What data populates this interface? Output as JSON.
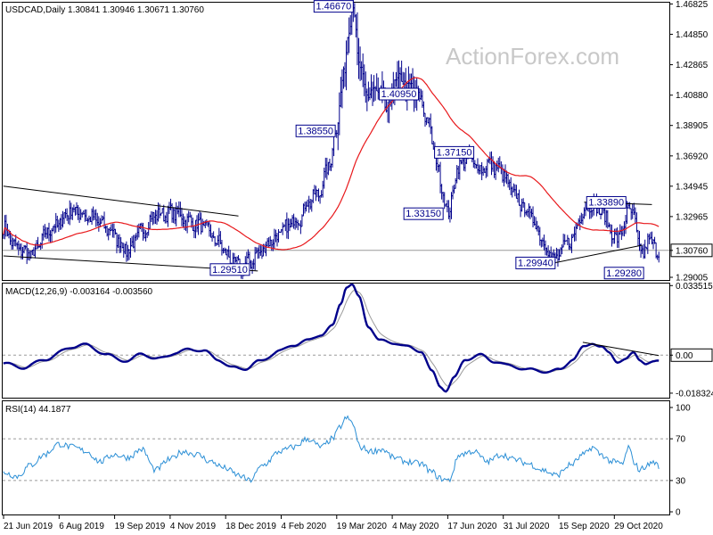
{
  "watermark": "ActionForex.com",
  "colors": {
    "candle": "#00008b",
    "ma": "#e8181b",
    "macd": "#00008b",
    "signal": "#999999",
    "rsi": "#2b8fd6",
    "trendline": "#000000",
    "refline": "#9a9a9a"
  },
  "x_axis": {
    "labels": [
      "21 Jun 2019",
      "6 Aug 2019",
      "19 Sep 2019",
      "4 Nov 2019",
      "18 Dec 2019",
      "4 Feb 2020",
      "19 Mar 2020",
      "4 May 2020",
      "17 Jun 2020",
      "31 Jul 2020",
      "15 Sep 2020",
      "29 Oct 2020"
    ]
  },
  "chart_data": [
    {
      "type": "candlestick",
      "title": "USDCAD,Daily  1.30841 1.30946 1.30671 1.30760",
      "ylim": [
        1.2883,
        1.4691
      ],
      "yticks": [
        "1.46825",
        "1.44850",
        "1.42865",
        "1.40880",
        "1.38905",
        "1.36920",
        "1.34945",
        "1.32965",
        "1.30760",
        "1.29005"
      ],
      "yticks_v": [
        1.46825,
        1.4485,
        1.42865,
        1.4088,
        1.38905,
        1.3692,
        1.34945,
        1.32965,
        1.3076,
        1.29005
      ],
      "last_price": "1.30760",
      "series": [
        {
          "name": "Moving average",
          "type": "line"
        }
      ],
      "close_anchors": [
        [
          0,
          1.322
        ],
        [
          10,
          1.309
        ],
        [
          20,
          1.305
        ],
        [
          35,
          1.322
        ],
        [
          50,
          1.334
        ],
        [
          65,
          1.328
        ],
        [
          75,
          1.322
        ],
        [
          90,
          1.308
        ],
        [
          100,
          1.32
        ],
        [
          110,
          1.331
        ],
        [
          125,
          1.332
        ],
        [
          135,
          1.326
        ],
        [
          145,
          1.323
        ],
        [
          155,
          1.313
        ],
        [
          165,
          1.301
        ],
        [
          172,
          1.296
        ],
        [
          178,
          1.3
        ],
        [
          185,
          1.306
        ],
        [
          195,
          1.315
        ],
        [
          205,
          1.322
        ],
        [
          210,
          1.327
        ],
        [
          215,
          1.329
        ],
        [
          220,
          1.339
        ],
        [
          228,
          1.345
        ],
        [
          236,
          1.364
        ],
        [
          240,
          1.385
        ],
        [
          246,
          1.42
        ],
        [
          250,
          1.455
        ],
        [
          253,
          1.467
        ],
        [
          257,
          1.43
        ],
        [
          262,
          1.41
        ],
        [
          270,
          1.412
        ],
        [
          278,
          1.4
        ],
        [
          285,
          1.42
        ],
        [
          292,
          1.415
        ],
        [
          300,
          1.408
        ],
        [
          306,
          1.395
        ],
        [
          312,
          1.371
        ],
        [
          318,
          1.345
        ],
        [
          322,
          1.331
        ],
        [
          328,
          1.36
        ],
        [
          335,
          1.368
        ],
        [
          345,
          1.361
        ],
        [
          352,
          1.364
        ],
        [
          360,
          1.359
        ],
        [
          368,
          1.346
        ],
        [
          375,
          1.337
        ],
        [
          382,
          1.33
        ],
        [
          388,
          1.318
        ],
        [
          395,
          1.306
        ],
        [
          400,
          1.301
        ],
        [
          405,
          1.31
        ],
        [
          412,
          1.316
        ],
        [
          418,
          1.332
        ],
        [
          425,
          1.338
        ],
        [
          430,
          1.335
        ],
        [
          436,
          1.328
        ],
        [
          442,
          1.315
        ],
        [
          448,
          1.32
        ],
        [
          452,
          1.336
        ],
        [
          456,
          1.328
        ],
        [
          460,
          1.311
        ],
        [
          463,
          1.303
        ],
        [
          466,
          1.316
        ],
        [
          470,
          1.31
        ],
        [
          474,
          1.307
        ]
      ],
      "annotations": [
        {
          "text": "1.46670",
          "bar": 253,
          "price": 1.4667,
          "pos": "left"
        },
        {
          "text": "1.38550",
          "bar": 240,
          "price": 1.3855,
          "pos": "left"
        },
        {
          "text": "1.40950",
          "bar": 286,
          "price": 1.4095,
          "pos": "center"
        },
        {
          "text": "1.37150",
          "bar": 326,
          "price": 1.3715,
          "pos": "center"
        },
        {
          "text": "1.33150",
          "bar": 318,
          "price": 1.3315,
          "pos": "left"
        },
        {
          "text": "1.29510",
          "bar": 178,
          "price": 1.2951,
          "pos": "left"
        },
        {
          "text": "1.29940",
          "bar": 399,
          "price": 1.2994,
          "pos": "left"
        },
        {
          "text": "1.33890",
          "bar": 436,
          "price": 1.3389,
          "pos": "center"
        },
        {
          "text": "1.29280",
          "bar": 463,
          "price": 1.2928,
          "pos": "left"
        }
      ],
      "trendlines": [
        [
          [
            0,
            1.3495
          ],
          [
            170,
            1.33
          ]
        ],
        [
          [
            0,
            1.304
          ],
          [
            184,
            1.2942
          ]
        ],
        [
          [
            398,
            1.2994
          ],
          [
            462,
            1.311
          ]
        ],
        [
          [
            420,
            1.339
          ],
          [
            469,
            1.3375
          ]
        ]
      ],
      "refline": 1.3076
    },
    {
      "type": "line",
      "title": "MACD(12,26,9) -0.003164 -0.003560",
      "ylim": [
        -0.0205,
        0.0345
      ],
      "yticks": [
        "0.033515",
        "0.00",
        "-0.018324"
      ],
      "yticks_v": [
        0.033515,
        0.0,
        -0.018324
      ],
      "last_value": "0.00",
      "series": [
        {
          "name": "MACD"
        },
        {
          "name": "Signal"
        }
      ],
      "macd_anchors": [
        [
          0,
          -0.004
        ],
        [
          15,
          -0.006
        ],
        [
          30,
          -0.002
        ],
        [
          50,
          0.004
        ],
        [
          60,
          0.005
        ],
        [
          75,
          0.0
        ],
        [
          90,
          -0.003
        ],
        [
          100,
          0.001
        ],
        [
          110,
          -0.002
        ],
        [
          125,
          0.001
        ],
        [
          135,
          0.003
        ],
        [
          145,
          0.002
        ],
        [
          155,
          -0.002
        ],
        [
          165,
          -0.006
        ],
        [
          175,
          -0.0065
        ],
        [
          185,
          -0.003
        ],
        [
          200,
          0.002
        ],
        [
          210,
          0.005
        ],
        [
          220,
          0.007
        ],
        [
          230,
          0.01
        ],
        [
          238,
          0.014
        ],
        [
          244,
          0.025
        ],
        [
          248,
          0.033
        ],
        [
          252,
          0.034
        ],
        [
          257,
          0.028
        ],
        [
          264,
          0.014
        ],
        [
          272,
          0.007
        ],
        [
          282,
          0.006
        ],
        [
          292,
          0.004
        ],
        [
          302,
          0.002
        ],
        [
          310,
          -0.008
        ],
        [
          316,
          -0.015
        ],
        [
          320,
          -0.017
        ],
        [
          326,
          -0.011
        ],
        [
          334,
          -0.002
        ],
        [
          345,
          0.0
        ],
        [
          355,
          -0.003
        ],
        [
          365,
          -0.005
        ],
        [
          380,
          -0.007
        ],
        [
          395,
          -0.008
        ],
        [
          402,
          -0.007
        ],
        [
          412,
          -0.002
        ],
        [
          420,
          0.004
        ],
        [
          426,
          0.006
        ],
        [
          432,
          0.004
        ],
        [
          438,
          0.001
        ],
        [
          444,
          -0.003
        ],
        [
          450,
          -0.002
        ],
        [
          456,
          0.001
        ],
        [
          460,
          -0.002
        ],
        [
          465,
          -0.004
        ],
        [
          470,
          -0.0035
        ],
        [
          474,
          -0.003
        ]
      ],
      "trendline": [
        [
          419,
          0.0062
        ],
        [
          474,
          -0.0002
        ]
      ]
    },
    {
      "type": "line",
      "title": "RSI(14) 44.1877",
      "ylim": [
        0,
        100
      ],
      "yticks": [
        "100",
        "70",
        "30",
        "0"
      ],
      "yticks_v": [
        100,
        70,
        30,
        0
      ],
      "guide_levels": [
        70,
        30
      ],
      "series": [
        {
          "name": "RSI"
        }
      ],
      "rsi_anchors": [
        [
          0,
          38
        ],
        [
          10,
          34
        ],
        [
          20,
          45
        ],
        [
          30,
          55
        ],
        [
          40,
          65
        ],
        [
          50,
          62
        ],
        [
          60,
          58
        ],
        [
          70,
          48
        ],
        [
          80,
          55
        ],
        [
          90,
          52
        ],
        [
          100,
          60
        ],
        [
          110,
          40
        ],
        [
          120,
          50
        ],
        [
          130,
          58
        ],
        [
          140,
          55
        ],
        [
          150,
          48
        ],
        [
          160,
          42
        ],
        [
          170,
          35
        ],
        [
          178,
          30
        ],
        [
          188,
          45
        ],
        [
          200,
          58
        ],
        [
          210,
          62
        ],
        [
          220,
          70
        ],
        [
          230,
          62
        ],
        [
          238,
          70
        ],
        [
          244,
          82
        ],
        [
          248,
          90
        ],
        [
          252,
          86
        ],
        [
          258,
          62
        ],
        [
          266,
          58
        ],
        [
          274,
          60
        ],
        [
          282,
          52
        ],
        [
          292,
          48
        ],
        [
          302,
          46
        ],
        [
          310,
          38
        ],
        [
          316,
          32
        ],
        [
          322,
          30
        ],
        [
          330,
          55
        ],
        [
          340,
          58
        ],
        [
          350,
          48
        ],
        [
          360,
          55
        ],
        [
          370,
          50
        ],
        [
          380,
          46
        ],
        [
          390,
          40
        ],
        [
          400,
          35
        ],
        [
          410,
          45
        ],
        [
          420,
          55
        ],
        [
          426,
          62
        ],
        [
          432,
          55
        ],
        [
          440,
          48
        ],
        [
          448,
          46
        ],
        [
          452,
          62
        ],
        [
          456,
          48
        ],
        [
          460,
          40
        ],
        [
          465,
          44
        ],
        [
          470,
          48
        ],
        [
          474,
          44
        ]
      ]
    }
  ]
}
